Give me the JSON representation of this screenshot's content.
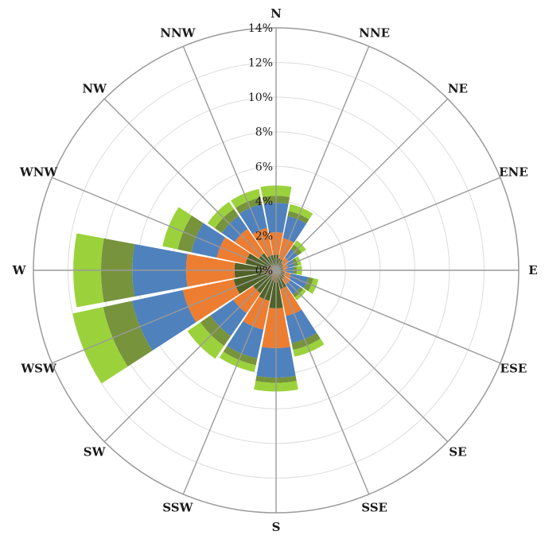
{
  "chart_data": {
    "type": "rose",
    "title": "",
    "directions": [
      "N",
      "NNE",
      "NE",
      "ENE",
      "E",
      "ESE",
      "SE",
      "SSE",
      "S",
      "SSW",
      "SW",
      "WSW",
      "W",
      "WNW",
      "NW",
      "NNW"
    ],
    "radial_ticks": [
      "0%",
      "2%",
      "4%",
      "6%",
      "8%",
      "10%",
      "12%",
      "14%"
    ],
    "radial_tick_values": [
      0,
      2,
      4,
      6,
      8,
      10,
      12,
      14
    ],
    "rmax": 14,
    "grid": true,
    "series_colors": [
      "#8b6a3e",
      "#4f6228",
      "#ed7d31",
      "#4f81bd",
      "#77933c",
      "#9bd23c"
    ],
    "stacked_cumulative": [
      [
        0.3,
        0.9,
        2.2,
        3.9,
        4.3,
        4.9
      ],
      [
        0.3,
        0.7,
        1.9,
        3.2,
        3.5,
        3.9
      ],
      [
        0.2,
        0.5,
        0.9,
        1.5,
        1.8,
        2.1
      ],
      [
        0.2,
        0.4,
        0.7,
        1.1,
        1.3,
        1.5
      ],
      [
        0.2,
        0.4,
        0.6,
        1.0,
        1.2,
        1.5
      ],
      [
        0.3,
        0.5,
        0.9,
        1.9,
        2.2,
        2.5
      ],
      [
        0.3,
        0.6,
        1.0,
        1.7,
        1.9,
        2.1
      ],
      [
        0.5,
        1.1,
        2.7,
        4.3,
        4.7,
        5.1
      ],
      [
        0.7,
        2.2,
        4.5,
        6.2,
        6.5,
        7.0
      ],
      [
        0.6,
        1.8,
        3.5,
        5.2,
        5.6,
        6.0
      ],
      [
        0.4,
        1.6,
        3.0,
        4.6,
        5.3,
        6.2
      ],
      [
        0.6,
        2.5,
        5.5,
        8.5,
        10.2,
        12.0
      ],
      [
        0.7,
        2.4,
        5.2,
        8.3,
        10.1,
        11.7
      ],
      [
        0.5,
        1.8,
        3.5,
        5.0,
        5.8,
        6.7
      ],
      [
        0.4,
        1.2,
        2.9,
        3.8,
        4.3,
        4.8
      ],
      [
        0.3,
        0.9,
        2.5,
        3.9,
        4.3,
        4.8
      ]
    ]
  }
}
